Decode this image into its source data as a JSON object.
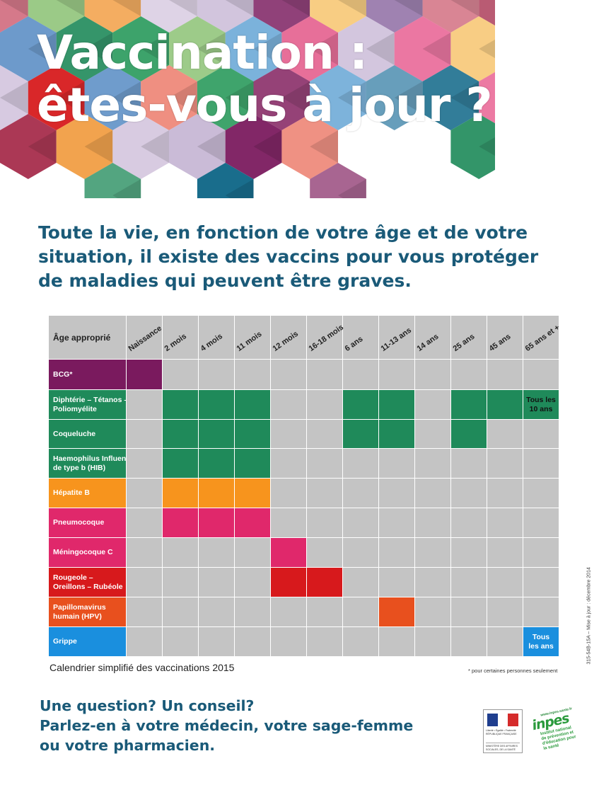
{
  "header": {
    "title_line1": "Vaccination :",
    "title_line2": "êtes-vous à jour ?"
  },
  "intro": {
    "line1": "Toute la vie, en fonction de votre âge et de votre",
    "line2": "situation, il existe des vaccins pour vous protéger",
    "line3": "de maladies qui peuvent être graves."
  },
  "colors": {
    "title_blue": "#1a5a78",
    "grid_gray": "#c4c4c4",
    "bcg": "#7a1a5e",
    "dtp": "#1f8a5a",
    "hepatite": "#f7941d",
    "pneumo": "#e0286b",
    "mening": "#e0286b",
    "ror": "#d7191c",
    "hpv": "#e8501e",
    "grippe": "#1a8fde"
  },
  "table": {
    "corner_label": "Âge approprié",
    "columns": [
      "Naissance",
      "2 mois",
      "4 mois",
      "11 mois",
      "12 mois",
      "16-18 mois",
      "6 ans",
      "11-13 ans",
      "14 ans",
      "25 ans",
      "45 ans",
      "65 ans et +"
    ],
    "rows": [
      {
        "label": [
          "BCG*"
        ],
        "color_key": "bcg",
        "cells": [
          1,
          0,
          0,
          0,
          0,
          0,
          0,
          0,
          0,
          0,
          0,
          0
        ]
      },
      {
        "label": [
          "Diphtérie – Tétanos –",
          "Poliomyélite"
        ],
        "color_key": "dtp",
        "cells": [
          0,
          1,
          1,
          1,
          0,
          0,
          1,
          1,
          0,
          1,
          1,
          1
        ]
      },
      {
        "label": [
          "Coqueluche"
        ],
        "color_key": "dtp",
        "cells": [
          0,
          1,
          1,
          1,
          0,
          0,
          1,
          1,
          0,
          1,
          0,
          0
        ]
      },
      {
        "label": [
          "Haemophilus Influenzae",
          "de type b (HIB)"
        ],
        "color_key": "dtp",
        "cells": [
          0,
          1,
          1,
          1,
          0,
          0,
          0,
          0,
          0,
          0,
          0,
          0
        ]
      },
      {
        "label": [
          "Hépatite B"
        ],
        "color_key": "hepatite",
        "cells": [
          0,
          1,
          1,
          1,
          0,
          0,
          0,
          0,
          0,
          0,
          0,
          0
        ]
      },
      {
        "label": [
          "Pneumocoque"
        ],
        "color_key": "pneumo",
        "cells": [
          0,
          1,
          1,
          1,
          0,
          0,
          0,
          0,
          0,
          0,
          0,
          0
        ]
      },
      {
        "label": [
          "Méningocoque C"
        ],
        "color_key": "mening",
        "cells": [
          0,
          0,
          0,
          0,
          1,
          0,
          0,
          0,
          0,
          0,
          0,
          0
        ]
      },
      {
        "label": [
          "Rougeole –",
          "Oreillons – Rubéole"
        ],
        "color_key": "ror",
        "cells": [
          0,
          0,
          0,
          0,
          1,
          1,
          0,
          0,
          0,
          0,
          0,
          0
        ]
      },
      {
        "label": [
          "Papillomavirus",
          "humain (HPV)"
        ],
        "color_key": "hpv",
        "cells": [
          0,
          0,
          0,
          0,
          0,
          0,
          0,
          1,
          0,
          0,
          0,
          0
        ]
      },
      {
        "label": [
          "Grippe"
        ],
        "color_key": "grippe",
        "cells": [
          0,
          0,
          0,
          0,
          0,
          0,
          0,
          0,
          0,
          0,
          0,
          1
        ]
      }
    ],
    "notes": [
      {
        "row": 1,
        "col": 11,
        "lines": [
          "Tous les",
          "10 ans"
        ],
        "light": false
      },
      {
        "row": 9,
        "col": 11,
        "lines": [
          "Tous",
          "les ans"
        ],
        "light": true
      }
    ]
  },
  "caption": "Calendrier simplifié des vaccinations 2015",
  "footnote": "* pour certaines personnes seulement",
  "side_code": "315-54B-15A – Mise à jour : décembre 2014",
  "cta": {
    "line1": "Une question? Un conseil?",
    "line2": "Parlez-en à votre médecin, votre sage-femme",
    "line3": "ou votre pharmacien."
  },
  "logos": {
    "ministry_motto": "Liberté • Égalité • Fraternité",
    "ministry_country": "RÉPUBLIQUE FRANÇAISE",
    "ministry_name": "MINISTÈRE DES AFFAIRES SOCIALES, DE LA SANTÉ",
    "inpes_url": "www.inpes.sante.fr",
    "inpes_name": "inpes",
    "inpes_subtitle": "Institut national de prévention et d'éducation pour la santé"
  }
}
